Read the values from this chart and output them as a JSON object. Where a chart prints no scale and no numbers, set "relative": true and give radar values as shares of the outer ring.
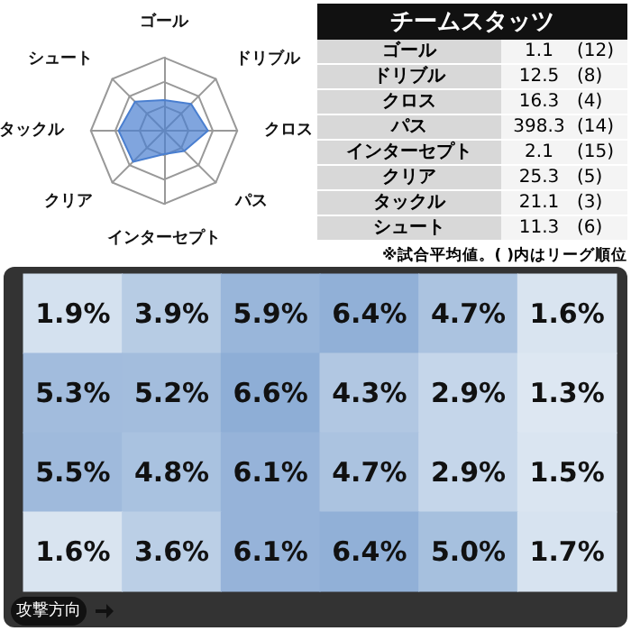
{
  "chart_data": [
    {
      "type": "radar",
      "relative": true,
      "categories": [
        "ゴール",
        "ドリブル",
        "クロス",
        "パス",
        "インターセプト",
        "クリア",
        "タックル",
        "シュート"
      ],
      "series": [
        {
          "color": "#4a7fd0",
          "values": [
            0.42,
            0.52,
            0.6,
            0.39,
            0.32,
            0.6,
            0.62,
            0.56
          ]
        }
      ]
    },
    {
      "type": "other",
      "title": "チームスタッツ",
      "categories": [
        "ゴール",
        "ドリブル",
        "クロス",
        "パス",
        "インターセプト",
        "クリア",
        "タックル",
        "シュート"
      ],
      "series": [
        {
          "values": [
            1.1,
            12.5,
            16.3,
            398.3,
            2.1,
            25.3,
            21.1,
            11.3
          ],
          "value_labels": [
            "1.1",
            "12.5",
            "16.3",
            "398.3",
            "2.1",
            "25.3",
            "21.1",
            "11.3"
          ]
        },
        {
          "values": [
            12,
            8,
            4,
            14,
            15,
            5,
            3,
            6
          ],
          "value_labels": [
            "(12)",
            "(8)",
            "(4)",
            "(14)",
            "(15)",
            "(5)",
            "(3)",
            "(6)"
          ]
        }
      ],
      "annotations": [
        "※試合平均値。( )内はリーグ順位"
      ]
    },
    {
      "type": "heatmap",
      "categories": [
        null,
        null,
        null,
        null,
        null,
        null
      ],
      "y_categories": [
        null,
        null,
        null,
        null
      ],
      "cells": [
        [
          1.9,
          3.9,
          5.9,
          6.4,
          4.7,
          1.6
        ],
        [
          5.3,
          5.2,
          6.6,
          4.3,
          2.9,
          1.3
        ],
        [
          5.5,
          4.8,
          6.1,
          4.7,
          2.9,
          1.5
        ],
        [
          1.6,
          3.6,
          6.1,
          6.4,
          5.0,
          1.7
        ]
      ],
      "cell_labels": [
        [
          "1.9%",
          "3.9%",
          "5.9%",
          "6.4%",
          "4.7%",
          "1.6%"
        ],
        [
          "5.3%",
          "5.2%",
          "6.6%",
          "4.3%",
          "2.9%",
          "1.3%"
        ],
        [
          "5.5%",
          "4.8%",
          "6.1%",
          "4.7%",
          "2.9%",
          "1.5%"
        ],
        [
          "1.6%",
          "3.6%",
          "6.1%",
          "6.4%",
          "5.0%",
          "1.7%"
        ]
      ],
      "annotations": [
        "攻撃方向"
      ]
    }
  ]
}
